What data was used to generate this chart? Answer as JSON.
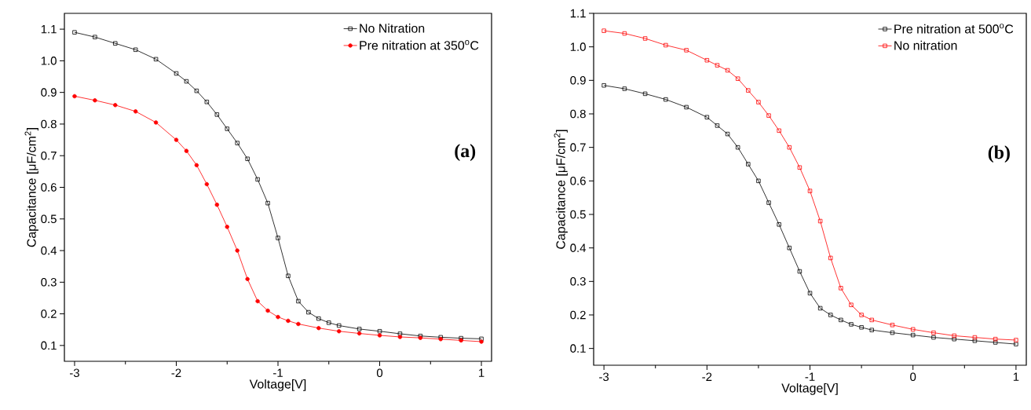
{
  "chart_data": [
    {
      "type": "line",
      "xlabel": "Voltage[V]",
      "ylabel": "Capacitance [μF/cm$^{2}$]",
      "annotations": [
        "(a)"
      ],
      "legend": "top right",
      "xlim": [
        -3.1,
        1.1
      ],
      "ylim": [
        0.05,
        1.15
      ],
      "xticks": [
        -3,
        {
          "value": -2.5,
          "label": null
        },
        -2,
        {
          "value": -1.5,
          "label": null
        },
        -1,
        {
          "value": -0.5,
          "label": null
        },
        0,
        {
          "value": 0.5,
          "label": null
        },
        1
      ],
      "yticks": [
        0.1,
        0.2,
        0.3,
        0.4,
        0.5,
        0.6,
        0.7,
        0.8,
        0.9,
        {
          "value": 1.0,
          "label": "1.0"
        },
        1.1
      ],
      "series": [
        {
          "name": "No Nitration",
          "color": "#000000",
          "marker": "square",
          "x": [
            -3,
            -2.8,
            -2.6,
            -2.4,
            -2.2,
            -2.0,
            -1.9,
            -1.8,
            -1.7,
            -1.6,
            -1.5,
            -1.4,
            -1.3,
            -1.2,
            -1.1,
            -1.0,
            -0.9,
            -0.8,
            -0.7,
            -0.6,
            -0.5,
            -0.4,
            -0.2,
            0,
            0.2,
            0.4,
            0.6,
            0.8,
            1
          ],
          "values": [
            1.09,
            1.075,
            1.055,
            1.035,
            1.005,
            0.96,
            0.935,
            0.905,
            0.87,
            0.83,
            0.785,
            0.74,
            0.69,
            0.625,
            0.55,
            0.44,
            0.32,
            0.24,
            0.205,
            0.185,
            0.172,
            0.163,
            0.152,
            0.145,
            0.137,
            0.13,
            0.126,
            0.123,
            0.121
          ]
        },
        {
          "name": "Pre nitration at 350$^{o}$C",
          "color": "#ff0000",
          "marker": "circle",
          "x": [
            -3,
            -2.8,
            -2.6,
            -2.4,
            -2.2,
            -2.0,
            -1.9,
            -1.8,
            -1.7,
            -1.6,
            -1.5,
            -1.4,
            -1.3,
            -1.2,
            -1.1,
            -1.0,
            -0.9,
            -0.8,
            -0.6,
            -0.4,
            -0.2,
            0,
            0.2,
            0.4,
            0.6,
            0.8,
            1
          ],
          "values": [
            0.888,
            0.875,
            0.86,
            0.84,
            0.805,
            0.75,
            0.715,
            0.67,
            0.61,
            0.545,
            0.475,
            0.4,
            0.31,
            0.24,
            0.21,
            0.19,
            0.178,
            0.168,
            0.155,
            0.145,
            0.138,
            0.132,
            0.127,
            0.124,
            0.12,
            0.116,
            0.112
          ]
        }
      ]
    },
    {
      "type": "line",
      "xlabel": "Voltage[V]",
      "ylabel": "Capacitance [μF/cm$^{2}$]",
      "annotations": [
        "(b)"
      ],
      "legend": "top right",
      "xlim": [
        -3.1,
        1.1
      ],
      "ylim": [
        0.05,
        1.1
      ],
      "xticks": [
        -3,
        {
          "value": -2.5,
          "label": null
        },
        -2,
        {
          "value": -1.5,
          "label": null
        },
        -1,
        {
          "value": -0.5,
          "label": null
        },
        0,
        {
          "value": 0.5,
          "label": null
        },
        1
      ],
      "yticks": [
        0.1,
        0.2,
        0.3,
        0.4,
        0.5,
        0.6,
        0.7,
        0.8,
        0.9,
        {
          "value": 1.0,
          "label": "1.0"
        },
        1.1
      ],
      "series": [
        {
          "name": "Pre nitration at 500$^{o}$C",
          "color": "#000000",
          "marker": "square",
          "x": [
            -3,
            -2.8,
            -2.6,
            -2.4,
            -2.2,
            -2.0,
            -1.9,
            -1.8,
            -1.7,
            -1.6,
            -1.5,
            -1.4,
            -1.3,
            -1.2,
            -1.1,
            -1.0,
            -0.9,
            -0.8,
            -0.7,
            -0.6,
            -0.5,
            -0.4,
            -0.2,
            0,
            0.2,
            0.4,
            0.6,
            0.8,
            1
          ],
          "values": [
            0.885,
            0.875,
            0.86,
            0.843,
            0.82,
            0.79,
            0.765,
            0.74,
            0.7,
            0.65,
            0.6,
            0.535,
            0.47,
            0.4,
            0.33,
            0.265,
            0.22,
            0.2,
            0.185,
            0.172,
            0.163,
            0.155,
            0.147,
            0.14,
            0.133,
            0.128,
            0.123,
            0.118,
            0.113
          ]
        },
        {
          "name": "No nitration",
          "color": "#ff0000",
          "marker": "square",
          "x": [
            -3,
            -2.8,
            -2.6,
            -2.4,
            -2.2,
            -2.0,
            -1.9,
            -1.8,
            -1.7,
            -1.6,
            -1.5,
            -1.4,
            -1.3,
            -1.2,
            -1.1,
            -1.0,
            -0.9,
            -0.8,
            -0.7,
            -0.6,
            -0.5,
            -0.4,
            -0.2,
            0,
            0.2,
            0.4,
            0.6,
            0.8,
            1
          ],
          "values": [
            1.048,
            1.04,
            1.025,
            1.005,
            0.99,
            0.96,
            0.945,
            0.93,
            0.905,
            0.87,
            0.835,
            0.795,
            0.75,
            0.7,
            0.64,
            0.57,
            0.48,
            0.37,
            0.28,
            0.23,
            0.2,
            0.185,
            0.17,
            0.157,
            0.147,
            0.138,
            0.133,
            0.128,
            0.125
          ]
        }
      ]
    }
  ]
}
